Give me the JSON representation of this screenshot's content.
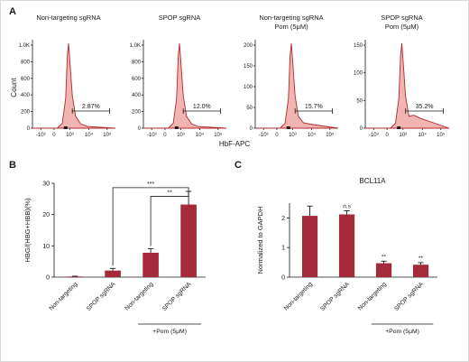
{
  "panels": {
    "A": {
      "label": "A",
      "ylabel": "Count",
      "xlabel": "HbF-APC",
      "y_ticks": [
        "1.0K",
        "800",
        "600",
        "400",
        "200",
        "0"
      ],
      "x_ticks": [
        "-10³",
        "0",
        "10³",
        "10⁴",
        "10⁵"
      ],
      "histograms": [
        {
          "title_lines": [
            "Non-targeting sgRNA"
          ],
          "y_ticks": [
            "1.0K",
            "800",
            "600",
            "400",
            "200",
            "0"
          ],
          "gate_pct": "2.87%"
        },
        {
          "title_lines": [
            "SPOP sgRNA"
          ],
          "y_ticks": [
            "1.0K",
            "800",
            "600",
            "400",
            "200",
            "0"
          ],
          "gate_pct": "12.0%"
        },
        {
          "title_lines": [
            "Non-targeting sgRNA",
            "Pom (5μM)"
          ],
          "y_ticks": [
            "200",
            "150",
            "100",
            "50",
            "0"
          ],
          "gate_pct": "15.7%"
        },
        {
          "title_lines": [
            "SPOP sgRNA",
            "Pom (5μM)"
          ],
          "y_ticks": [
            "150",
            "100",
            "50",
            "0"
          ],
          "gate_pct": "35.2%"
        }
      ]
    },
    "B": {
      "label": "B"
    },
    "C": {
      "label": "C"
    }
  },
  "chart_data": [
    {
      "type": "bar",
      "panel": "B",
      "title": "",
      "ylabel": "HBG/(HBG+HBB)(%)",
      "categories": [
        "Non-targeting",
        "SPOP sgRNA",
        "Non-targeting",
        "SPOP sgRNA"
      ],
      "values": [
        0.2,
        2.1,
        7.8,
        23.2
      ],
      "errors": [
        0.1,
        0.7,
        1.3,
        4.2
      ],
      "ylim": [
        0,
        30
      ],
      "y_ticks": [
        "0",
        "10",
        "20",
        "30"
      ],
      "group_label": "+Pom (5μM)",
      "significance": [
        {
          "from": 1,
          "to": 3,
          "label": "***"
        },
        {
          "from": 2,
          "to": 3,
          "label": "**"
        }
      ],
      "color": "#a52a3a"
    },
    {
      "type": "bar",
      "panel": "C",
      "title": "BCL11A",
      "ylabel": "Normalized to GAPDH",
      "categories": [
        "Non-targeting",
        "SPOP sgRNA",
        "Non-targeting",
        "SPOP sgRNA"
      ],
      "values": [
        2.07,
        2.12,
        0.47,
        0.42
      ],
      "errors": [
        0.33,
        0.12,
        0.07,
        0.07
      ],
      "ylim": [
        0,
        2.5
      ],
      "y_ticks": [
        "0",
        "1",
        "2"
      ],
      "annotations": [
        "",
        "n.s",
        "**",
        "**"
      ],
      "group_label": "+Pom (5μM)",
      "color": "#a52a3a"
    }
  ]
}
